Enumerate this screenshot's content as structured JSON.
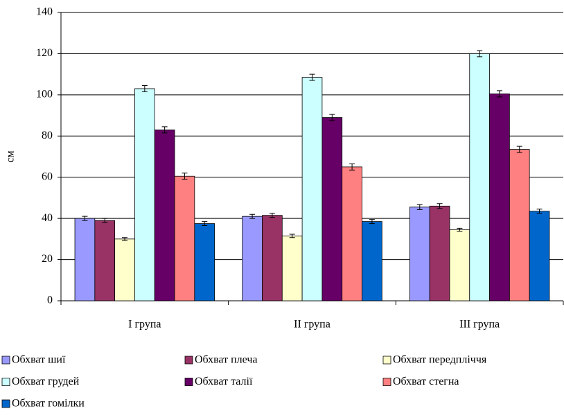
{
  "chart_data": {
    "type": "bar",
    "y_label": "см",
    "categories": [
      "I група",
      "II група",
      "III група"
    ],
    "series": [
      {
        "name": "Обхват шиї",
        "color": "#9999ff",
        "values": [
          40,
          41,
          45.5
        ],
        "errors": [
          1,
          1,
          1.2
        ]
      },
      {
        "name": "Обхват плеча",
        "color": "#993366",
        "values": [
          39,
          41.5,
          46
        ],
        "errors": [
          1,
          1,
          1.2
        ]
      },
      {
        "name": "Обхват передпліччя",
        "color": "#ffffcc",
        "values": [
          30,
          31.5,
          34.5
        ],
        "errors": [
          0.7,
          0.8,
          0.7
        ]
      },
      {
        "name": "Обхват грудей",
        "color": "#ccffff",
        "values": [
          103,
          108.5,
          120
        ],
        "errors": [
          1.5,
          1.5,
          1.5
        ]
      },
      {
        "name": "Обхват талії",
        "color": "#660066",
        "values": [
          83,
          89,
          100.5
        ],
        "errors": [
          1.5,
          1.5,
          1.5
        ]
      },
      {
        "name": "Обхват стегна",
        "color": "#ff8080",
        "values": [
          60.5,
          65,
          73.5
        ],
        "errors": [
          1.5,
          1.5,
          1.5
        ]
      },
      {
        "name": "Обхват гомілки",
        "color": "#0066cc",
        "values": [
          37.5,
          38.5,
          43.5
        ],
        "errors": [
          1,
          1,
          1
        ]
      }
    ],
    "ylim": [
      0,
      140
    ],
    "yticks": [
      0,
      20,
      40,
      60,
      80,
      100,
      120,
      140
    ],
    "grid": true
  }
}
